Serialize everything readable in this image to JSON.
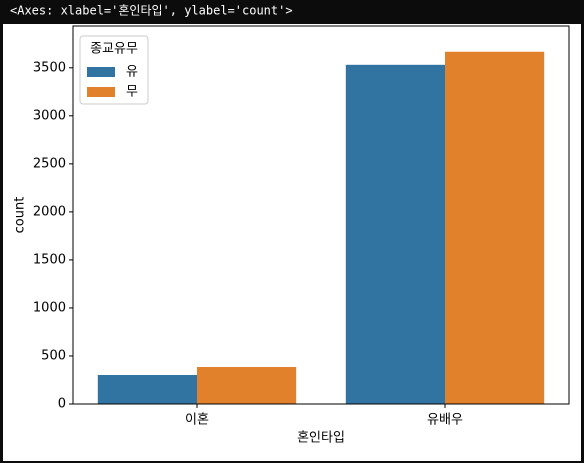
{
  "output_text": "<Axes: xlabel='혼인타입', ylabel='count'>",
  "chart_data": {
    "type": "bar",
    "xlabel": "혼인타입",
    "ylabel": "count",
    "categories": [
      "이혼",
      "유배우"
    ],
    "series": [
      {
        "name": "유",
        "color": "#3274a1",
        "values": [
          302,
          3531
        ]
      },
      {
        "name": "무",
        "color": "#e1812c",
        "values": [
          385,
          3667
        ]
      }
    ],
    "legend_title": "종교유무",
    "legend": "upper left",
    "ylim": [
      0,
      3935
    ],
    "yticks": [
      0,
      500,
      1000,
      1500,
      2000,
      2500,
      3000,
      3500
    ],
    "grid": false
  }
}
